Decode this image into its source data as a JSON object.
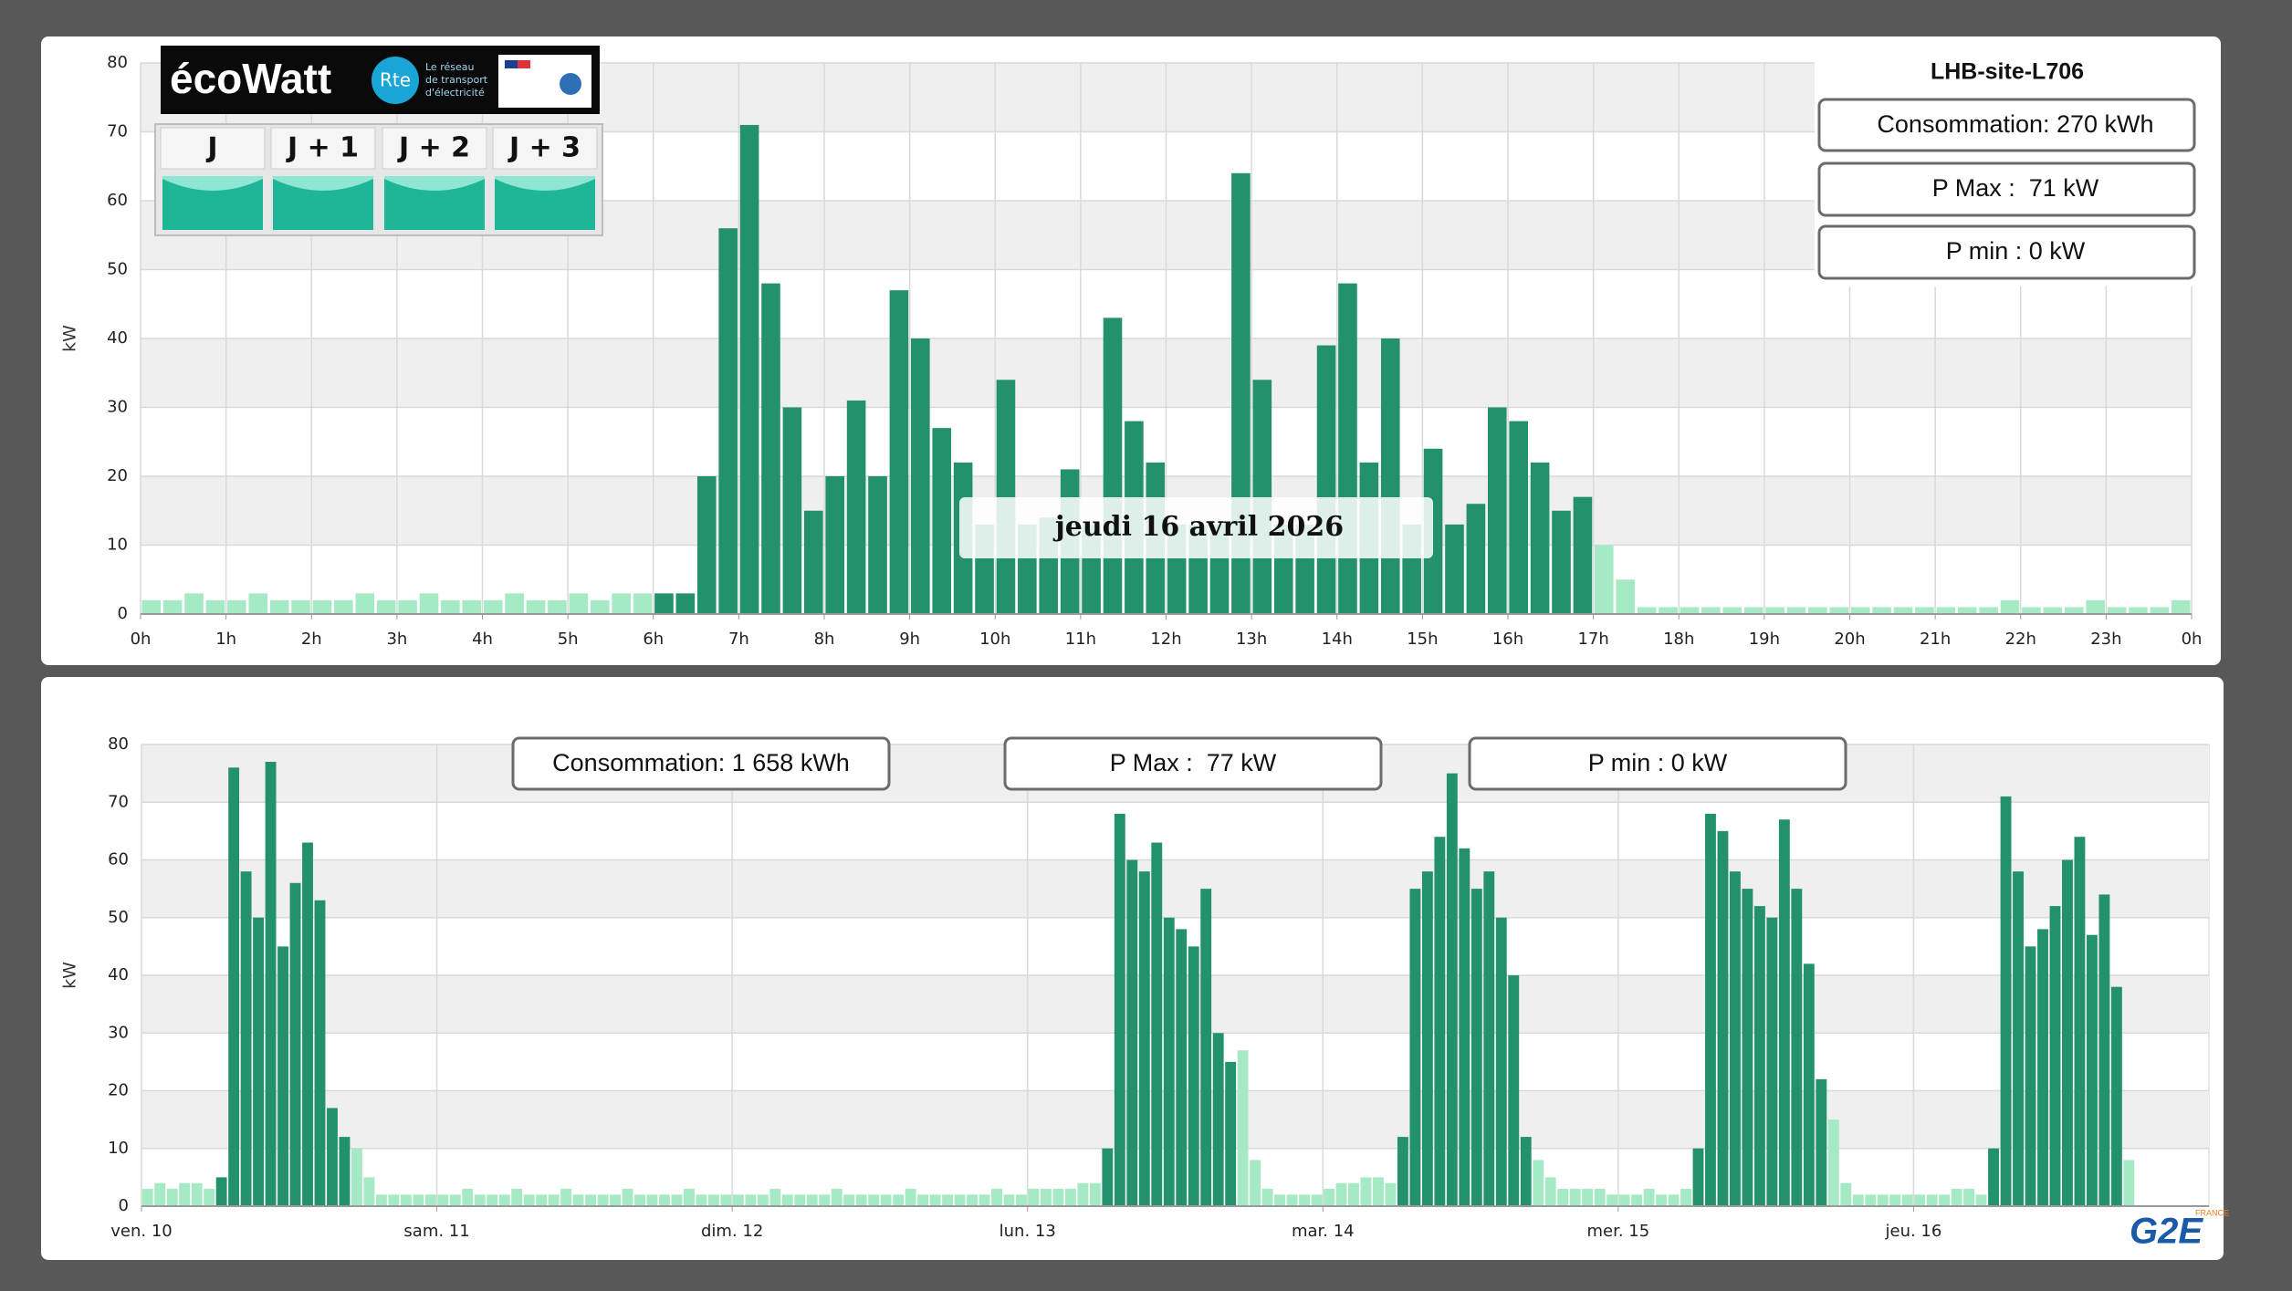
{
  "site": "LHB-site-L706",
  "date_label": "jeudi 16 avril 2026",
  "ecowatt": {
    "logo": "écoWatt",
    "rte": "Rte",
    "rte_tagline": [
      "Le réseau",
      "de transport",
      "d'électricité"
    ],
    "days": [
      "J",
      "J + 1",
      "J + 2",
      "J + 3"
    ]
  },
  "stats_day": [
    "Consommation: 270 kWh",
    "P Max :  71 kW",
    "P min : 0 kW"
  ],
  "stats_week": [
    "Consommation: 1 658 kWh",
    "P Max :  77 kW",
    "P min : 0 kW"
  ],
  "brand": {
    "name": "G2E",
    "country": "FRANCE"
  },
  "chart_data": [
    {
      "type": "bar",
      "y_label": "kW",
      "grid": true,
      "x": [
        0,
        0.25,
        0.5,
        0.75,
        1,
        1.25,
        1.5,
        1.75,
        2,
        2.25,
        2.5,
        2.75,
        3,
        3.25,
        3.5,
        3.75,
        4,
        4.25,
        4.5,
        4.75,
        5,
        5.25,
        5.5,
        5.75,
        6,
        6.25,
        6.5,
        6.75,
        7,
        7.25,
        7.5,
        7.75,
        8,
        8.25,
        8.5,
        8.75,
        9,
        9.25,
        9.5,
        9.75,
        10,
        10.25,
        10.5,
        10.75,
        11,
        11.25,
        11.5,
        11.75,
        12,
        12.25,
        12.5,
        12.75,
        13,
        13.25,
        13.5,
        13.75,
        14,
        14.25,
        14.5,
        14.75,
        15,
        15.25,
        15.5,
        15.75,
        16,
        16.25,
        16.5,
        16.75,
        17,
        17.25,
        17.5,
        17.75,
        18,
        18.25,
        18.5,
        18.75,
        19,
        19.25,
        19.5,
        19.75,
        20,
        20.25,
        20.5,
        20.75,
        21,
        21.25,
        21.5,
        21.75,
        22,
        22.25,
        22.5,
        22.75,
        23,
        23.25,
        23.5,
        23.75
      ],
      "series": [
        {
          "color": "#23916b",
          "values": [
            null,
            null,
            null,
            null,
            null,
            null,
            null,
            null,
            null,
            null,
            null,
            null,
            null,
            null,
            null,
            null,
            null,
            null,
            null,
            null,
            null,
            null,
            null,
            null,
            3,
            3,
            20,
            56,
            71,
            48,
            30,
            15,
            20,
            31,
            20,
            47,
            40,
            27,
            22,
            13,
            34,
            13,
            14,
            21,
            13,
            43,
            28,
            22,
            13,
            13,
            13,
            64,
            34,
            13,
            13,
            39,
            48,
            22,
            40,
            13,
            24,
            13,
            16,
            30,
            28,
            22,
            15,
            17,
            null,
            null,
            null,
            null,
            null,
            null,
            null,
            null,
            null,
            null,
            null,
            null,
            null,
            null,
            null,
            null,
            null,
            null,
            null,
            null,
            null,
            null,
            null,
            null,
            null,
            null,
            null,
            null
          ]
        },
        {
          "color": "#a6e9c5",
          "values": [
            2,
            2,
            3,
            2,
            2,
            3,
            2,
            2,
            2,
            2,
            3,
            2,
            2,
            3,
            2,
            2,
            2,
            3,
            2,
            2,
            3,
            2,
            3,
            3,
            null,
            null,
            null,
            null,
            null,
            null,
            null,
            null,
            null,
            null,
            null,
            null,
            null,
            null,
            null,
            null,
            null,
            null,
            null,
            null,
            null,
            null,
            null,
            null,
            null,
            null,
            null,
            null,
            null,
            null,
            null,
            null,
            null,
            null,
            null,
            null,
            null,
            null,
            null,
            null,
            null,
            null,
            null,
            null,
            10,
            5,
            1,
            1,
            1,
            1,
            1,
            1,
            1,
            1,
            1,
            1,
            1,
            1,
            1,
            1,
            1,
            1,
            1,
            2,
            1,
            1,
            1,
            2,
            1,
            1,
            1,
            2
          ]
        }
      ],
      "xlim": [
        0,
        24
      ],
      "ylim": [
        0,
        80
      ],
      "xticks": [
        {
          "value": 0,
          "label": "0h"
        },
        {
          "value": 1,
          "label": "1h"
        },
        {
          "value": 2,
          "label": "2h"
        },
        {
          "value": 3,
          "label": "3h"
        },
        {
          "value": 4,
          "label": "4h"
        },
        {
          "value": 5,
          "label": "5h"
        },
        {
          "value": 6,
          "label": "6h"
        },
        {
          "value": 7,
          "label": "7h"
        },
        {
          "value": 8,
          "label": "8h"
        },
        {
          "value": 9,
          "label": "9h"
        },
        {
          "value": 10,
          "label": "10h"
        },
        {
          "value": 11,
          "label": "11h"
        },
        {
          "value": 12,
          "label": "12h"
        },
        {
          "value": 13,
          "label": "13h"
        },
        {
          "value": 14,
          "label": "14h"
        },
        {
          "value": 15,
          "label": "15h"
        },
        {
          "value": 16,
          "label": "16h"
        },
        {
          "value": 17,
          "label": "17h"
        },
        {
          "value": 18,
          "label": "18h"
        },
        {
          "value": 19,
          "label": "19h"
        },
        {
          "value": 20,
          "label": "20h"
        },
        {
          "value": 21,
          "label": "21h"
        },
        {
          "value": 22,
          "label": "22h"
        },
        {
          "value": 23,
          "label": "23h"
        },
        {
          "value": 24,
          "label": "0h"
        }
      ],
      "yticks": [
        0,
        10,
        20,
        30,
        40,
        50,
        60,
        70,
        80
      ]
    },
    {
      "type": "bar",
      "y_label": "kW",
      "grid": true,
      "x": [
        0,
        1,
        2,
        3,
        4,
        5,
        6,
        7,
        8,
        9,
        10,
        11,
        12,
        13,
        14,
        15,
        16,
        17,
        18,
        19,
        20,
        21,
        22,
        23,
        24,
        25,
        26,
        27,
        28,
        29,
        30,
        31,
        32,
        33,
        34,
        35,
        36,
        37,
        38,
        39,
        40,
        41,
        42,
        43,
        44,
        45,
        46,
        47,
        48,
        49,
        50,
        51,
        52,
        53,
        54,
        55,
        56,
        57,
        58,
        59,
        60,
        61,
        62,
        63,
        64,
        65,
        66,
        67,
        68,
        69,
        70,
        71,
        72,
        73,
        74,
        75,
        76,
        77,
        78,
        79,
        80,
        81,
        82,
        83,
        84,
        85,
        86,
        87,
        88,
        89,
        90,
        91,
        92,
        93,
        94,
        95,
        96,
        97,
        98,
        99,
        100,
        101,
        102,
        103,
        104,
        105,
        106,
        107,
        108,
        109,
        110,
        111,
        112,
        113,
        114,
        115,
        116,
        117,
        118,
        119,
        120,
        121,
        122,
        123,
        124,
        125,
        126,
        127,
        128,
        129,
        130,
        131,
        132,
        133,
        134,
        135,
        136,
        137,
        138,
        139,
        140,
        141,
        142,
        143,
        144,
        145,
        146,
        147,
        148,
        149,
        150,
        151,
        152,
        153,
        154,
        155,
        156,
        157,
        158,
        159,
        160,
        161,
        162,
        163,
        164,
        165,
        166,
        167
      ],
      "series": [
        {
          "color": "#23916b",
          "values": [
            null,
            null,
            null,
            null,
            null,
            null,
            5,
            76,
            58,
            50,
            77,
            45,
            56,
            63,
            53,
            17,
            12,
            null,
            null,
            null,
            null,
            null,
            null,
            null,
            null,
            null,
            null,
            null,
            null,
            null,
            null,
            null,
            null,
            null,
            null,
            null,
            null,
            null,
            null,
            null,
            null,
            null,
            null,
            null,
            null,
            null,
            null,
            null,
            null,
            null,
            null,
            null,
            null,
            null,
            null,
            null,
            null,
            null,
            null,
            null,
            null,
            null,
            null,
            null,
            null,
            null,
            null,
            null,
            null,
            null,
            null,
            null,
            null,
            null,
            null,
            null,
            null,
            null,
            10,
            68,
            60,
            58,
            63,
            50,
            48,
            45,
            55,
            30,
            25,
            null,
            null,
            null,
            null,
            null,
            null,
            null,
            null,
            null,
            null,
            null,
            null,
            null,
            12,
            55,
            58,
            64,
            75,
            62,
            55,
            58,
            50,
            40,
            12,
            null,
            null,
            null,
            null,
            null,
            null,
            null,
            null,
            null,
            null,
            null,
            null,
            null,
            10,
            68,
            65,
            58,
            55,
            52,
            50,
            67,
            55,
            42,
            22,
            null,
            null,
            null,
            null,
            null,
            null,
            null,
            null,
            null,
            null,
            null,
            null,
            null,
            10,
            71,
            58,
            45,
            48,
            52,
            60,
            64,
            47,
            54,
            38,
            null,
            null,
            null,
            null,
            null,
            null,
            null
          ]
        },
        {
          "color": "#a6e9c5",
          "values": [
            3,
            4,
            3,
            4,
            4,
            3,
            null,
            null,
            null,
            null,
            null,
            null,
            null,
            null,
            null,
            null,
            null,
            10,
            5,
            2,
            2,
            2,
            2,
            2,
            2,
            2,
            3,
            2,
            2,
            2,
            3,
            2,
            2,
            2,
            3,
            2,
            2,
            2,
            2,
            3,
            2,
            2,
            2,
            2,
            3,
            2,
            2,
            2,
            2,
            2,
            2,
            3,
            2,
            2,
            2,
            2,
            3,
            2,
            2,
            2,
            2,
            2,
            3,
            2,
            2,
            2,
            2,
            2,
            2,
            3,
            2,
            2,
            3,
            3,
            3,
            3,
            4,
            4,
            null,
            null,
            null,
            null,
            null,
            null,
            null,
            null,
            null,
            null,
            null,
            27,
            8,
            3,
            2,
            2,
            2,
            2,
            3,
            4,
            4,
            5,
            5,
            4,
            null,
            null,
            null,
            null,
            null,
            null,
            null,
            null,
            null,
            null,
            null,
            8,
            5,
            3,
            3,
            3,
            3,
            2,
            2,
            2,
            3,
            2,
            2,
            3,
            null,
            null,
            null,
            null,
            null,
            null,
            null,
            null,
            null,
            null,
            null,
            15,
            4,
            2,
            2,
            2,
            2,
            2,
            2,
            2,
            2,
            3,
            3,
            2,
            null,
            null,
            null,
            null,
            null,
            null,
            null,
            null,
            null,
            null,
            null,
            8,
            null,
            null,
            null,
            null,
            null,
            null
          ]
        }
      ],
      "xlim": [
        0,
        168
      ],
      "ylim": [
        0,
        80
      ],
      "xticks": [
        {
          "value": 0,
          "label": "ven. 10"
        },
        {
          "value": 24,
          "label": "sam. 11"
        },
        {
          "value": 48,
          "label": "dim. 12"
        },
        {
          "value": 72,
          "label": "lun. 13"
        },
        {
          "value": 96,
          "label": "mar. 14"
        },
        {
          "value": 120,
          "label": "mer. 15"
        },
        {
          "value": 144,
          "label": "jeu. 16"
        }
      ],
      "yticks": [
        0,
        10,
        20,
        30,
        40,
        50,
        60,
        70,
        80
      ]
    }
  ]
}
